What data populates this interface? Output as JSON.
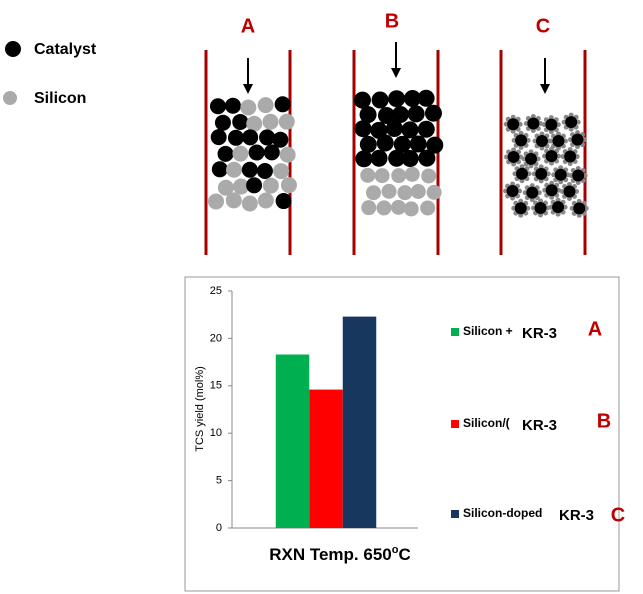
{
  "legend_items": [
    {
      "label": "Catalyst"
    },
    {
      "label": "Silicon"
    }
  ],
  "tubes": [
    {
      "label": "A"
    },
    {
      "label": "B"
    },
    {
      "label": "C"
    }
  ],
  "chart_data": {
    "type": "bar",
    "categories": [
      null
    ],
    "series": [
      {
        "name": "Silicon +",
        "color": "#00b050",
        "values": [
          18.3
        ]
      },
      {
        "name": "Silicon/(",
        "color": "#ff0000",
        "values": [
          14.6
        ]
      },
      {
        "name": "Silicon-doped",
        "color": "#17375e",
        "values": [
          22.3
        ]
      }
    ],
    "ylabel": "TCS yield (mol%)",
    "xlabel": {
      "main": "RXN Temp. 650",
      "sup": "o",
      "unit": "C"
    },
    "ylim": [
      0,
      25
    ],
    "yticks": [
      0,
      5,
      10,
      15,
      20,
      25
    ],
    "annotations": [
      {
        "text": "KR-3",
        "tag": "A"
      },
      {
        "text": "KR-3",
        "tag": "B"
      },
      {
        "text": "KR-3",
        "tag": "C"
      }
    ]
  }
}
